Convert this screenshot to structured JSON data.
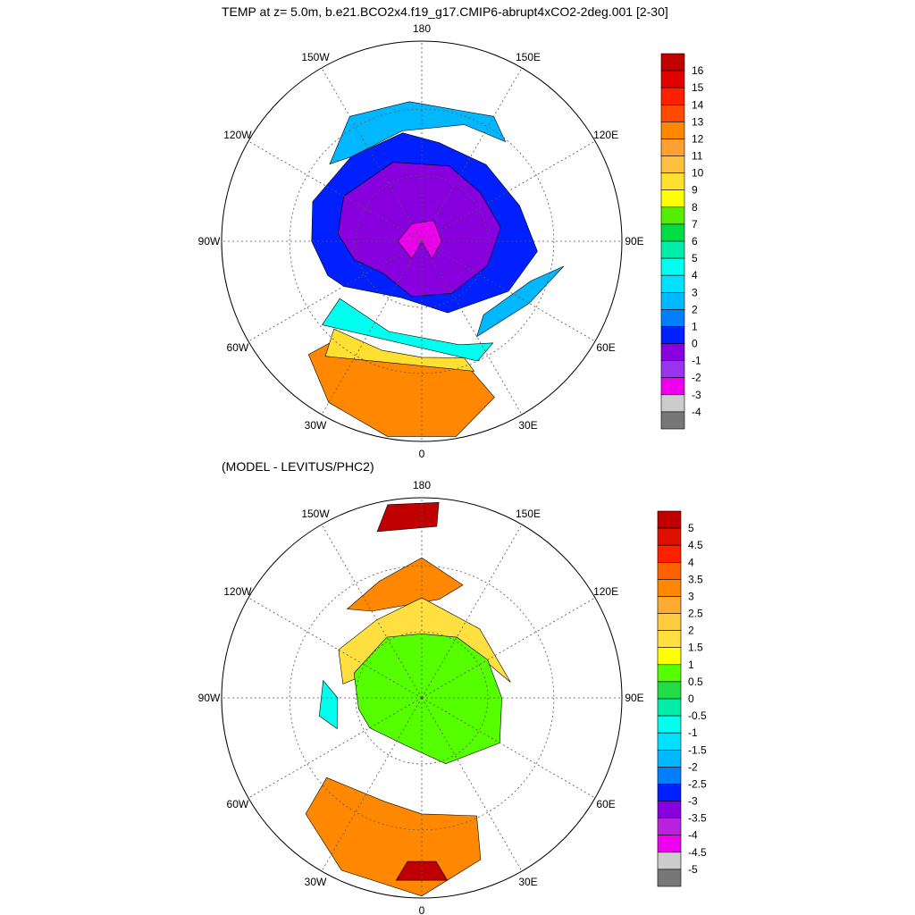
{
  "titles": {
    "top": "TEMP at z=   5.0m, b.e21.BCO2x4.f19_g17.CMIP6-abrupt4xCO2-2deg.001 [2-30]",
    "bottom": "(MODEL - LEVITUS/PHC2)"
  },
  "lon_labels": [
    "180",
    "150E",
    "120E",
    "90E",
    "60E",
    "30E",
    "0",
    "30W",
    "60W",
    "90W",
    "120W",
    "150W"
  ],
  "map_top": {
    "colorbar": {
      "labels": [
        "16",
        "15",
        "14",
        "13",
        "12",
        "11",
        "10",
        "9",
        "8",
        "7",
        "6",
        "5",
        "4",
        "3",
        "2",
        "1",
        "0",
        "-1",
        "-2",
        "-3",
        "-4"
      ],
      "colors": [
        "#c00000",
        "#e00000",
        "#ff2000",
        "#ff4a00",
        "#ff8800",
        "#ffa030",
        "#ffc040",
        "#ffe030",
        "#ffff00",
        "#55ee00",
        "#00dd44",
        "#00eeaa",
        "#00ffee",
        "#00e0ff",
        "#00b8ff",
        "#0080ff",
        "#0020ff",
        "#8800dd",
        "#9933ee",
        "#ee00ee",
        "#cccccc",
        "#777777"
      ]
    }
  },
  "map_bottom": {
    "colorbar": {
      "labels": [
        "5",
        "4.5",
        "4",
        "3.5",
        "3",
        "2.5",
        "2",
        "1.5",
        "1",
        "0.5",
        "0",
        "-0.5",
        "-1",
        "-1.5",
        "-2",
        "-2.5",
        "-3",
        "-3.5",
        "-4",
        "-4.5",
        "-5"
      ],
      "colors": [
        "#c00000",
        "#e01000",
        "#ff2000",
        "#ff6000",
        "#ff8800",
        "#ffaa30",
        "#ffcc40",
        "#ffe040",
        "#ffff00",
        "#55ff00",
        "#22dd44",
        "#00eeaa",
        "#00ffee",
        "#00e0ff",
        "#00b8ff",
        "#0080ff",
        "#0020ff",
        "#8800dd",
        "#bb22dd",
        "#ee00ee",
        "#cccccc",
        "#777777"
      ]
    }
  }
}
